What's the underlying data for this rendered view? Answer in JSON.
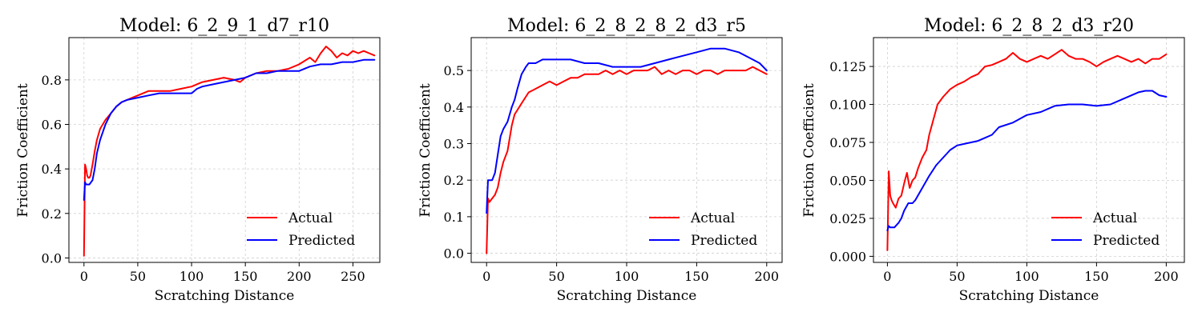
{
  "chart_data": [
    {
      "type": "line",
      "title": "Model: 6_2_9_1_d7_r10",
      "xlabel": "Scratching Distance",
      "ylabel": "Friction Coefficient",
      "xlim": [
        -14,
        275
      ],
      "ylim": [
        -0.02,
        0.99
      ],
      "xticks": [
        0,
        50,
        100,
        150,
        200,
        250
      ],
      "xtick_labels": [
        "0",
        "50",
        "100",
        "150",
        "200",
        "250"
      ],
      "yticks": [
        0.0,
        0.2,
        0.4,
        0.6,
        0.8
      ],
      "ytick_labels": [
        "0.0",
        "0.2",
        "0.4",
        "0.6",
        "0.8"
      ],
      "grid": true,
      "legend": "lower-right",
      "series": [
        {
          "name": "Actual",
          "color": "#ff0000",
          "x": [
            0,
            1,
            2,
            3,
            4,
            5,
            6,
            8,
            10,
            12,
            15,
            20,
            25,
            30,
            35,
            40,
            45,
            50,
            55,
            60,
            70,
            80,
            90,
            100,
            110,
            120,
            130,
            140,
            145,
            150,
            160,
            170,
            180,
            190,
            200,
            210,
            215,
            220,
            225,
            230,
            235,
            240,
            245,
            250,
            255,
            260,
            265,
            270
          ],
          "y": [
            0.01,
            0.42,
            0.4,
            0.37,
            0.36,
            0.36,
            0.37,
            0.42,
            0.48,
            0.53,
            0.58,
            0.62,
            0.65,
            0.68,
            0.7,
            0.71,
            0.72,
            0.73,
            0.74,
            0.75,
            0.75,
            0.75,
            0.76,
            0.77,
            0.79,
            0.8,
            0.81,
            0.8,
            0.79,
            0.81,
            0.83,
            0.84,
            0.84,
            0.85,
            0.87,
            0.9,
            0.88,
            0.92,
            0.95,
            0.93,
            0.9,
            0.92,
            0.91,
            0.93,
            0.92,
            0.93,
            0.92,
            0.91
          ]
        },
        {
          "name": "Predicted",
          "color": "#0000ff",
          "x": [
            0,
            1,
            2,
            5,
            8,
            10,
            12,
            15,
            20,
            25,
            30,
            35,
            40,
            50,
            60,
            70,
            80,
            90,
            100,
            105,
            110,
            120,
            130,
            140,
            150,
            160,
            170,
            180,
            190,
            200,
            210,
            220,
            230,
            240,
            250,
            260,
            270
          ],
          "y": [
            0.26,
            0.34,
            0.33,
            0.33,
            0.35,
            0.4,
            0.47,
            0.53,
            0.6,
            0.65,
            0.68,
            0.7,
            0.71,
            0.72,
            0.73,
            0.74,
            0.74,
            0.74,
            0.74,
            0.76,
            0.77,
            0.78,
            0.79,
            0.8,
            0.81,
            0.83,
            0.83,
            0.84,
            0.84,
            0.84,
            0.86,
            0.87,
            0.87,
            0.88,
            0.88,
            0.89,
            0.89
          ]
        }
      ]
    },
    {
      "type": "line",
      "title": "Model: 6_2_8_2_8_2_d3_r5",
      "xlabel": "Scratching Distance",
      "ylabel": "Friction Coefficient",
      "xlim": [
        -11,
        211
      ],
      "ylim": [
        -0.025,
        0.59
      ],
      "xticks": [
        0,
        50,
        100,
        150,
        200
      ],
      "xtick_labels": [
        "0",
        "50",
        "100",
        "150",
        "200"
      ],
      "yticks": [
        0.0,
        0.1,
        0.2,
        0.3,
        0.4,
        0.5
      ],
      "ytick_labels": [
        "0.0",
        "0.1",
        "0.2",
        "0.3",
        "0.4",
        "0.5"
      ],
      "grid": true,
      "legend": "lower-right",
      "series": [
        {
          "name": "Actual",
          "color": "#ff0000",
          "x": [
            0,
            1,
            2,
            4,
            6,
            8,
            10,
            12,
            15,
            18,
            20,
            25,
            30,
            35,
            40,
            45,
            50,
            55,
            60,
            65,
            70,
            75,
            80,
            85,
            90,
            95,
            100,
            105,
            110,
            115,
            120,
            125,
            130,
            135,
            140,
            145,
            150,
            155,
            160,
            165,
            170,
            175,
            180,
            185,
            190,
            195,
            200
          ],
          "y": [
            0.0,
            0.15,
            0.14,
            0.15,
            0.16,
            0.18,
            0.22,
            0.25,
            0.28,
            0.35,
            0.38,
            0.41,
            0.44,
            0.45,
            0.46,
            0.47,
            0.46,
            0.47,
            0.48,
            0.48,
            0.49,
            0.49,
            0.49,
            0.5,
            0.49,
            0.5,
            0.49,
            0.5,
            0.5,
            0.5,
            0.51,
            0.49,
            0.5,
            0.49,
            0.5,
            0.5,
            0.49,
            0.5,
            0.5,
            0.49,
            0.5,
            0.5,
            0.5,
            0.5,
            0.51,
            0.5,
            0.49
          ]
        },
        {
          "name": "Predicted",
          "color": "#0000ff",
          "x": [
            0,
            1,
            2,
            4,
            6,
            8,
            10,
            12,
            15,
            18,
            20,
            22,
            25,
            28,
            30,
            35,
            40,
            50,
            60,
            70,
            80,
            90,
            100,
            110,
            120,
            130,
            140,
            150,
            160,
            170,
            180,
            190,
            195,
            200
          ],
          "y": [
            0.11,
            0.2,
            0.2,
            0.2,
            0.22,
            0.27,
            0.32,
            0.34,
            0.36,
            0.4,
            0.42,
            0.45,
            0.49,
            0.51,
            0.52,
            0.52,
            0.53,
            0.53,
            0.53,
            0.52,
            0.52,
            0.51,
            0.51,
            0.51,
            0.52,
            0.53,
            0.54,
            0.55,
            0.56,
            0.56,
            0.55,
            0.53,
            0.52,
            0.5
          ]
        }
      ]
    },
    {
      "type": "line",
      "title": "Model: 6_2_8_2_d3_r20",
      "xlabel": "Scratching Distance",
      "ylabel": "Friction Coefficient",
      "xlim": [
        -10,
        213
      ],
      "ylim": [
        -0.004,
        0.144
      ],
      "xticks": [
        0,
        50,
        100,
        150,
        200
      ],
      "xtick_labels": [
        "0",
        "50",
        "100",
        "150",
        "200"
      ],
      "yticks": [
        0.0,
        0.025,
        0.05,
        0.075,
        0.1,
        0.125
      ],
      "ytick_labels": [
        "0.000",
        "0.025",
        "0.050",
        "0.075",
        "0.100",
        "0.125"
      ],
      "grid": true,
      "legend": "lower-right",
      "series": [
        {
          "name": "Actual",
          "color": "#ff0000",
          "x": [
            0,
            1,
            2,
            3,
            4,
            6,
            8,
            10,
            12,
            14,
            16,
            18,
            20,
            22,
            25,
            28,
            30,
            33,
            36,
            40,
            45,
            50,
            55,
            60,
            65,
            70,
            75,
            80,
            85,
            90,
            95,
            100,
            105,
            110,
            115,
            120,
            125,
            130,
            135,
            140,
            145,
            150,
            155,
            160,
            165,
            170,
            175,
            180,
            185,
            190,
            195,
            200
          ],
          "y": [
            0.004,
            0.056,
            0.04,
            0.037,
            0.035,
            0.032,
            0.038,
            0.04,
            0.048,
            0.055,
            0.045,
            0.05,
            0.052,
            0.058,
            0.065,
            0.07,
            0.08,
            0.09,
            0.1,
            0.105,
            0.11,
            0.113,
            0.115,
            0.118,
            0.12,
            0.125,
            0.126,
            0.128,
            0.13,
            0.134,
            0.13,
            0.128,
            0.13,
            0.132,
            0.13,
            0.133,
            0.136,
            0.132,
            0.13,
            0.13,
            0.128,
            0.125,
            0.128,
            0.13,
            0.132,
            0.13,
            0.128,
            0.13,
            0.127,
            0.13,
            0.13,
            0.133
          ]
        },
        {
          "name": "Predicted",
          "color": "#0000ff",
          "x": [
            0,
            1,
            2,
            5,
            8,
            10,
            12,
            15,
            18,
            20,
            25,
            30,
            35,
            40,
            45,
            50,
            55,
            60,
            65,
            70,
            75,
            80,
            90,
            100,
            110,
            120,
            130,
            140,
            150,
            160,
            170,
            180,
            185,
            190,
            195,
            200
          ],
          "y": [
            0.017,
            0.02,
            0.019,
            0.019,
            0.022,
            0.025,
            0.03,
            0.035,
            0.035,
            0.037,
            0.045,
            0.053,
            0.06,
            0.065,
            0.07,
            0.073,
            0.074,
            0.075,
            0.076,
            0.078,
            0.08,
            0.085,
            0.088,
            0.093,
            0.095,
            0.099,
            0.1,
            0.1,
            0.099,
            0.1,
            0.104,
            0.108,
            0.109,
            0.109,
            0.106,
            0.105
          ]
        }
      ]
    }
  ]
}
